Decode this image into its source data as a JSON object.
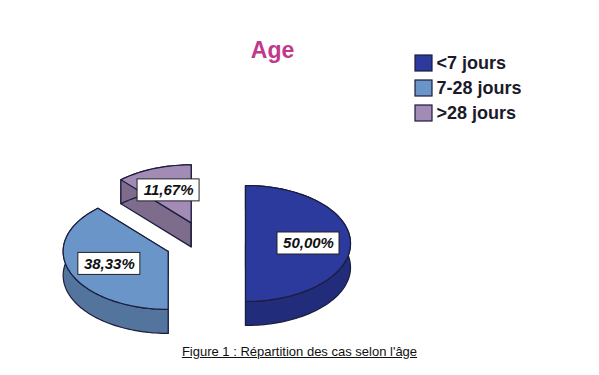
{
  "chart_data": {
    "type": "pie",
    "title": "Age",
    "caption": "Figure 1 : Répartition des cas selon l'âge",
    "categories": [
      "<7 jours",
      "7-28 jours",
      ">28 jours"
    ],
    "values": [
      50,
      38.33,
      11.67
    ],
    "value_labels": [
      "50,00%",
      "38,33%",
      "11,67%"
    ],
    "colors": [
      "#2b3a9c",
      "#6a95c9",
      "#a28bb5"
    ],
    "data_labels": true,
    "legend": "top-right"
  }
}
